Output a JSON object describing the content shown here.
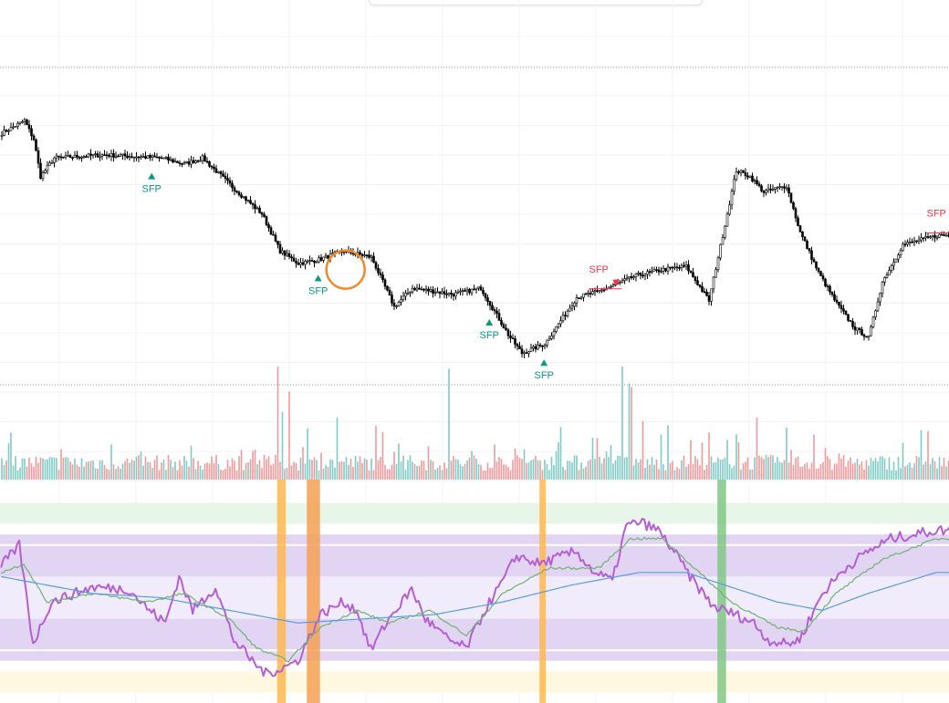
{
  "colors": {
    "candle_up": "#ffffff",
    "candle_down": "#000000",
    "candle_wick": "#000000",
    "volume_up": "#80cbc4",
    "volume_down": "#ef9a9a",
    "grid": "#f0f3fa",
    "dotted_line": "#9598a1",
    "sfp_bull": "#089981",
    "sfp_bear": "#f23645",
    "oscillator_main": "#b45fd3",
    "oscillator_fast": "#6fb36f",
    "oscillator_slow": "#5b9bdd",
    "band_overbought": "#e8f5e9",
    "band_upper": "#e1d5f3",
    "band_mid": "#f1ecfb",
    "band_lower": "#e1d5f3",
    "band_oversold": "#fff8e1",
    "level_line": "#ffffff",
    "highlight_orange": "#ffb74d",
    "highlight_orange_dark": "#f4a052",
    "highlight_green": "#81c784",
    "circle_marker": "#ef8a2a"
  },
  "chart_data": [
    {
      "type": "candlestick",
      "panel": "price",
      "title": "",
      "xlabel": "",
      "ylabel": "",
      "ylim": [
        0,
        100
      ],
      "grid": true,
      "anchors": [
        [
          0,
          80
        ],
        [
          10,
          84
        ],
        [
          14,
          78
        ],
        [
          17,
          66
        ],
        [
          23,
          72
        ],
        [
          45,
          73
        ],
        [
          70,
          72
        ],
        [
          80,
          70
        ],
        [
          88,
          72
        ],
        [
          102,
          62
        ],
        [
          114,
          54
        ],
        [
          122,
          42
        ],
        [
          130,
          38
        ],
        [
          138,
          39
        ],
        [
          150,
          42
        ],
        [
          162,
          40
        ],
        [
          172,
          24
        ],
        [
          180,
          30
        ],
        [
          198,
          28
        ],
        [
          210,
          30
        ],
        [
          222,
          15
        ],
        [
          228,
          9
        ],
        [
          238,
          12
        ],
        [
          252,
          27
        ],
        [
          262,
          29
        ],
        [
          278,
          34
        ],
        [
          290,
          36
        ],
        [
          300,
          37
        ],
        [
          310,
          26
        ],
        [
          322,
          68
        ],
        [
          328,
          66
        ],
        [
          334,
          61
        ],
        [
          344,
          63
        ],
        [
          350,
          48
        ],
        [
          358,
          35
        ],
        [
          366,
          25
        ],
        [
          374,
          17
        ],
        [
          380,
          14
        ],
        [
          386,
          32
        ],
        [
          395,
          44
        ],
        [
          410,
          47
        ]
      ],
      "sfp_markers": [
        {
          "bar": 66,
          "direction": "bull",
          "label": "SFP",
          "label_side": "below"
        },
        {
          "bar": 139,
          "direction": "bull",
          "label": "SFP",
          "label_side": "below"
        },
        {
          "bar": 214,
          "direction": "bull",
          "label": "SFP",
          "label_side": "below"
        },
        {
          "bar": 238,
          "direction": "bull",
          "label": "SFP",
          "label_side": "below"
        },
        {
          "bar": 260,
          "direction": "bear",
          "label": "SFP",
          "label_side": "above"
        },
        {
          "bar": 408,
          "direction": "bear",
          "label": "SFP",
          "label_side": "above"
        }
      ]
    },
    {
      "type": "bar",
      "panel": "volume",
      "title": "",
      "xlabel": "",
      "ylabel": "",
      "spikes": [
        {
          "bar": 121,
          "value": 100
        },
        {
          "bar": 123,
          "value": 60
        },
        {
          "bar": 126,
          "value": 78
        },
        {
          "bar": 147,
          "value": 55
        },
        {
          "bar": 196,
          "value": 98
        },
        {
          "bar": 272,
          "value": 100
        },
        {
          "bar": 275,
          "value": 85
        },
        {
          "bar": 276,
          "value": 82
        },
        {
          "bar": 281,
          "value": 52
        },
        {
          "bar": 292,
          "value": 48
        },
        {
          "bar": 322,
          "value": 40
        },
        {
          "bar": 331,
          "value": 55
        },
        {
          "bar": 344,
          "value": 46
        },
        {
          "bar": 356,
          "value": 40
        }
      ]
    },
    {
      "type": "line",
      "panel": "oscillator",
      "title": "",
      "xlabel": "",
      "ylabel": "",
      "ylim": [
        0,
        100
      ],
      "levels": [
        95,
        85,
        80,
        60,
        40,
        20,
        15,
        5
      ],
      "series": [
        {
          "values": [
            [
              0,
              65
            ],
            [
              8,
              75
            ],
            [
              14,
              28
            ],
            [
              22,
              48
            ],
            [
              40,
              55
            ],
            [
              56,
              54
            ],
            [
              64,
              45
            ],
            [
              72,
              38
            ],
            [
              78,
              60
            ],
            [
              84,
              44
            ],
            [
              94,
              55
            ],
            [
              102,
              30
            ],
            [
              110,
              20
            ],
            [
              116,
              14
            ],
            [
              122,
              16
            ],
            [
              130,
              20
            ],
            [
              140,
              42
            ],
            [
              150,
              48
            ],
            [
              156,
              44
            ],
            [
              162,
              25
            ],
            [
              170,
              40
            ],
            [
              180,
              54
            ],
            [
              186,
              40
            ],
            [
              196,
              30
            ],
            [
              204,
              26
            ],
            [
              212,
              44
            ],
            [
              220,
              58
            ],
            [
              226,
              70
            ],
            [
              236,
              66
            ],
            [
              252,
              72
            ],
            [
              260,
              62
            ],
            [
              268,
              58
            ],
            [
              274,
              84
            ],
            [
              280,
              86
            ],
            [
              288,
              82
            ],
            [
              295,
              72
            ],
            [
              302,
              60
            ],
            [
              312,
              46
            ],
            [
              322,
              42
            ],
            [
              330,
              38
            ],
            [
              336,
              30
            ],
            [
              344,
              28
            ],
            [
              350,
              30
            ],
            [
              360,
              52
            ],
            [
              370,
              64
            ],
            [
              380,
              72
            ],
            [
              390,
              78
            ],
            [
              400,
              80
            ],
            [
              410,
              82
            ]
          ]
        },
        {
          "values": [
            [
              0,
              62
            ],
            [
              10,
              66
            ],
            [
              20,
              48
            ],
            [
              40,
              52
            ],
            [
              64,
              48
            ],
            [
              80,
              52
            ],
            [
              100,
              40
            ],
            [
              112,
              26
            ],
            [
              126,
              20
            ],
            [
              140,
              36
            ],
            [
              156,
              44
            ],
            [
              170,
              38
            ],
            [
              188,
              44
            ],
            [
              204,
              32
            ],
            [
              220,
              52
            ],
            [
              240,
              64
            ],
            [
              262,
              64
            ],
            [
              276,
              78
            ],
            [
              290,
              78
            ],
            [
              302,
              66
            ],
            [
              320,
              48
            ],
            [
              340,
              36
            ],
            [
              352,
              34
            ],
            [
              366,
              52
            ],
            [
              386,
              68
            ],
            [
              410,
              78
            ]
          ]
        },
        {
          "values": [
            [
              0,
              60
            ],
            [
              20,
              56
            ],
            [
              40,
              52
            ],
            [
              70,
              50
            ],
            [
              100,
              44
            ],
            [
              130,
              38
            ],
            [
              160,
              40
            ],
            [
              190,
              42
            ],
            [
              220,
              48
            ],
            [
              250,
              56
            ],
            [
              280,
              62
            ],
            [
              300,
              62
            ],
            [
              320,
              55
            ],
            [
              340,
              48
            ],
            [
              360,
              44
            ],
            [
              380,
              52
            ],
            [
              410,
              62
            ]
          ]
        }
      ],
      "highlight_bars": [
        {
          "start_bar": 121,
          "end_bar": 123,
          "tone": "orange"
        },
        {
          "start_bar": 134,
          "end_bar": 138,
          "tone": "orange_dark"
        },
        {
          "start_bar": 236,
          "end_bar": 237,
          "tone": "orange"
        },
        {
          "start_bar": 314,
          "end_bar": 316,
          "tone": "green"
        }
      ]
    }
  ],
  "annotations": [
    {
      "type": "circle",
      "bar": 147,
      "price_level": 36
    }
  ]
}
